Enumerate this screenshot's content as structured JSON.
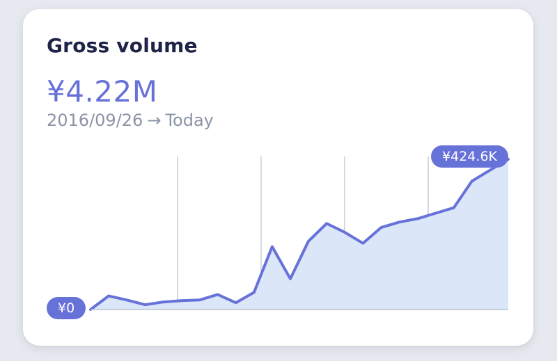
{
  "card": {
    "title": "Gross volume",
    "amount": "¥4.22M",
    "date_range": {
      "start": "2016/09/26",
      "arrow": "→",
      "end": "Today"
    }
  },
  "chart_data": {
    "type": "area",
    "x_start_label": "2016/09/26",
    "x_end_label": "Today",
    "values": [
      0,
      20,
      14,
      7,
      11,
      13,
      14,
      22,
      10,
      25,
      92,
      45,
      100,
      126,
      113,
      97,
      120,
      128,
      133,
      141,
      149,
      188,
      204,
      220
    ],
    "ylim": [
      0,
      224
    ],
    "vertical_gridlines": 4,
    "start_label": "¥0",
    "end_label": "¥424.6K",
    "colors": {
      "line": "#6772d9",
      "fill": "#dbe6f8",
      "gridline": "#c7ced9",
      "baseline": "#b9c2d0"
    }
  }
}
